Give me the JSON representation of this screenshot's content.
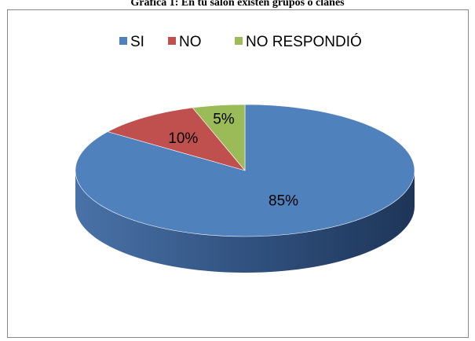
{
  "chart_data": {
    "type": "pie",
    "title": "Gráfica 1: En tu salón existen grupos o clanes",
    "categories": [
      "SI",
      "NO",
      "NO RESPONDIÓ"
    ],
    "values": [
      85,
      10,
      5
    ],
    "data_labels": [
      "85%",
      "10%",
      "5%"
    ],
    "colors": [
      "#4F81BD",
      "#C0504D",
      "#9BBB59"
    ],
    "legend": "top",
    "three_d": true
  }
}
